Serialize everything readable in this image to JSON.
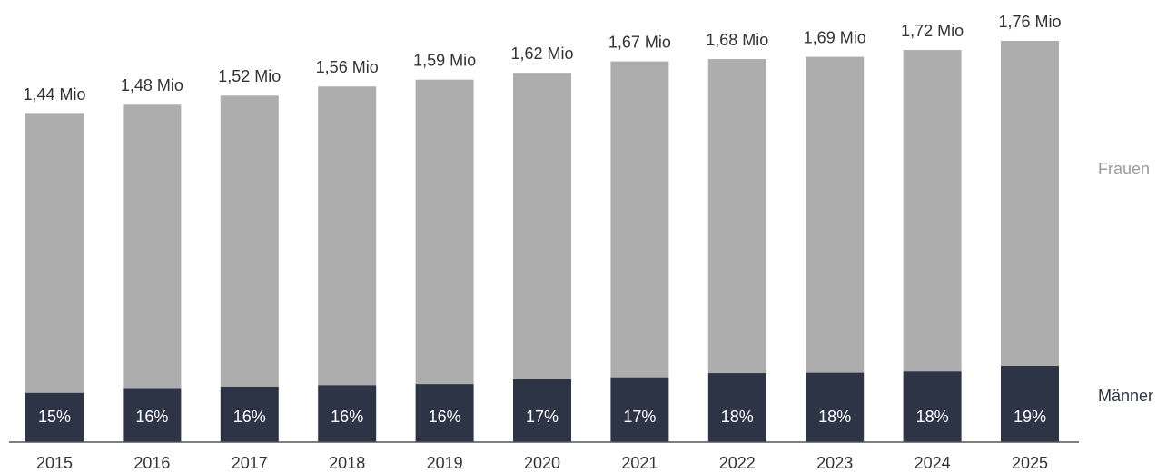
{
  "chart_data": {
    "type": "bar",
    "categories": [
      "2015",
      "2016",
      "2017",
      "2018",
      "2019",
      "2020",
      "2021",
      "2022",
      "2023",
      "2024",
      "2025"
    ],
    "values": [
      1.44,
      1.48,
      1.52,
      1.56,
      1.59,
      1.62,
      1.67,
      1.68,
      1.69,
      1.72,
      1.76
    ],
    "value_labels": [
      "1,44 Mio",
      "1,48 Mio",
      "1,52 Mio",
      "1,56 Mio",
      "1,59 Mio",
      "1,62 Mio",
      "1,67 Mio",
      "1,68 Mio",
      "1,69 Mio",
      "1,72 Mio",
      "1,76 Mio"
    ],
    "series": [
      {
        "name": "Männer",
        "color": "#2d3446",
        "values": [
          15,
          16,
          16,
          16,
          16,
          17,
          17,
          18,
          18,
          18,
          19
        ],
        "value_labels": [
          "15%",
          "16%",
          "16%",
          "16%",
          "16%",
          "17%",
          "17%",
          "18%",
          "18%",
          "18%",
          "19%"
        ]
      },
      {
        "name": "Frauen",
        "color": "#adadad"
      }
    ]
  }
}
